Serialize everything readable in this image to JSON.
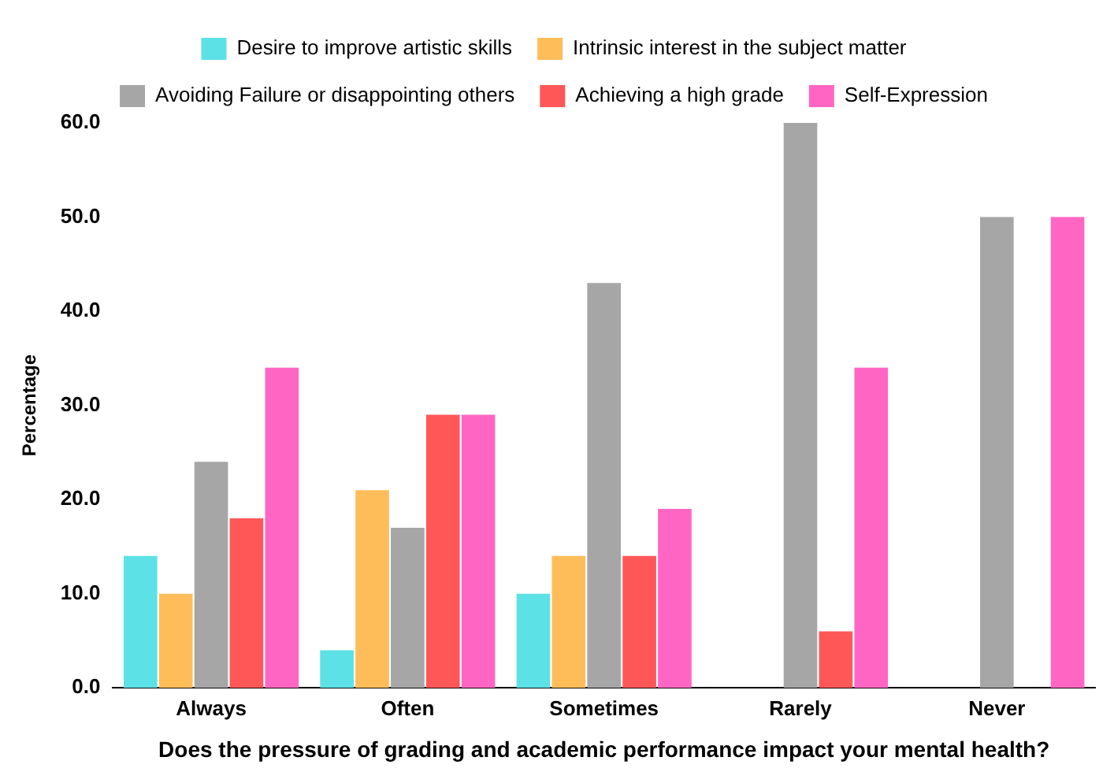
{
  "chart_data": {
    "type": "bar",
    "xlabel": "Does the pressure of grading and academic performance impact your mental health?",
    "ylabel": "Percentage",
    "categories": [
      "Always",
      "Often",
      "Sometimes",
      "Rarely",
      "Never"
    ],
    "series": [
      {
        "name": "Desire to improve artistic skills",
        "color": "#5ce1e6",
        "values": [
          14,
          4,
          10,
          0,
          0
        ]
      },
      {
        "name": "Intrinsic interest in the subject matter",
        "color": "#ffbd59",
        "values": [
          10,
          21,
          14,
          0,
          0
        ]
      },
      {
        "name": "Avoiding Failure or disappointing others",
        "color": "#a6a6a6",
        "values": [
          24,
          17,
          43,
          60,
          50
        ]
      },
      {
        "name": "Achieving a high grade",
        "color": "#ff5757",
        "values": [
          18,
          29,
          14,
          6,
          0
        ]
      },
      {
        "name": "Self-Expression",
        "color": "#ff66c4",
        "values": [
          34,
          29,
          19,
          34,
          50
        ]
      }
    ],
    "ylim": [
      0,
      60
    ],
    "yticks": [
      {
        "value": 0,
        "label": "0.0"
      },
      {
        "value": 10,
        "label": "10.0"
      },
      {
        "value": 20,
        "label": "20.0"
      },
      {
        "value": 30,
        "label": "30.0"
      },
      {
        "value": 40,
        "label": "40.0"
      },
      {
        "value": 50,
        "label": "50.0"
      },
      {
        "value": 60,
        "label": "60.0"
      }
    ],
    "grid": false,
    "legend": "top"
  }
}
